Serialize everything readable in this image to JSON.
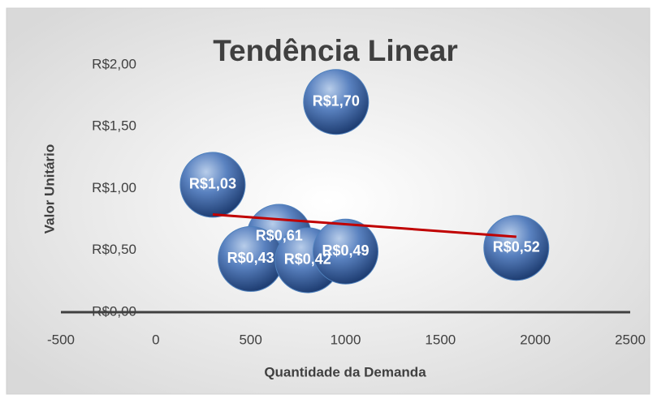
{
  "chart_data": {
    "type": "bubble",
    "title": "Tendência Linear",
    "x_label": "Quantidade da Demanda",
    "y_label": "Valor Unitário",
    "x": [
      950,
      300,
      650,
      500,
      800,
      1000,
      1900
    ],
    "values": [
      1.7,
      1.03,
      0.61,
      0.43,
      0.42,
      0.49,
      0.52
    ],
    "value_labels": [
      "R$1,70",
      "R$1,03",
      "R$0,61",
      "R$0,43",
      "R$0,42",
      "R$0,49",
      "R$0,52"
    ],
    "sizes": [
      1,
      1,
      1,
      1,
      1,
      1,
      1
    ],
    "color": "#4f81bd",
    "trendline": {
      "x": [
        300,
        1900
      ],
      "y": [
        0.79,
        0.61
      ],
      "color": "#c00000"
    },
    "xlim": [
      -500,
      2500
    ],
    "xticks": [
      -500,
      0,
      500,
      1000,
      1500,
      2000,
      2500
    ],
    "ylim": [
      0,
      2
    ],
    "yticks": [
      {
        "value": 0,
        "label": "R$0,00"
      },
      {
        "value": 0.5,
        "label": "R$0,50"
      },
      {
        "value": 1,
        "label": "R$1,00"
      },
      {
        "value": 1.5,
        "label": "R$1,50"
      },
      {
        "value": 2,
        "label": "R$2,00"
      }
    ]
  }
}
